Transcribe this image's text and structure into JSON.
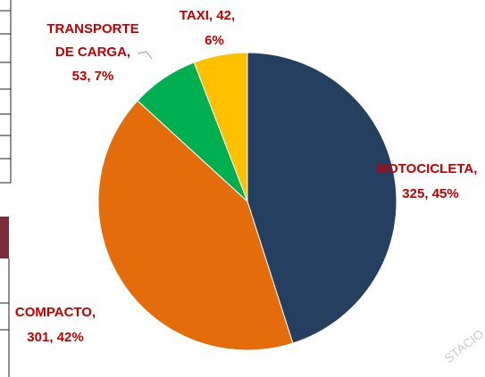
{
  "chart_data": {
    "type": "pie",
    "values": [
      325,
      301,
      53,
      42
    ],
    "value_labels": [
      [
        "MOTOCICLETA,",
        "325, 45%"
      ],
      [
        "COMPACTO,",
        "301, 42%"
      ],
      [
        "TRANSPORTE",
        "DE CARGA,",
        "53, 7%"
      ],
      [
        "TAXI, 42,",
        "6%"
      ]
    ],
    "colors": [
      "#243f60",
      "#e46c0a",
      "#00b050",
      "#ffc000"
    ],
    "watermark": "STACIO"
  }
}
